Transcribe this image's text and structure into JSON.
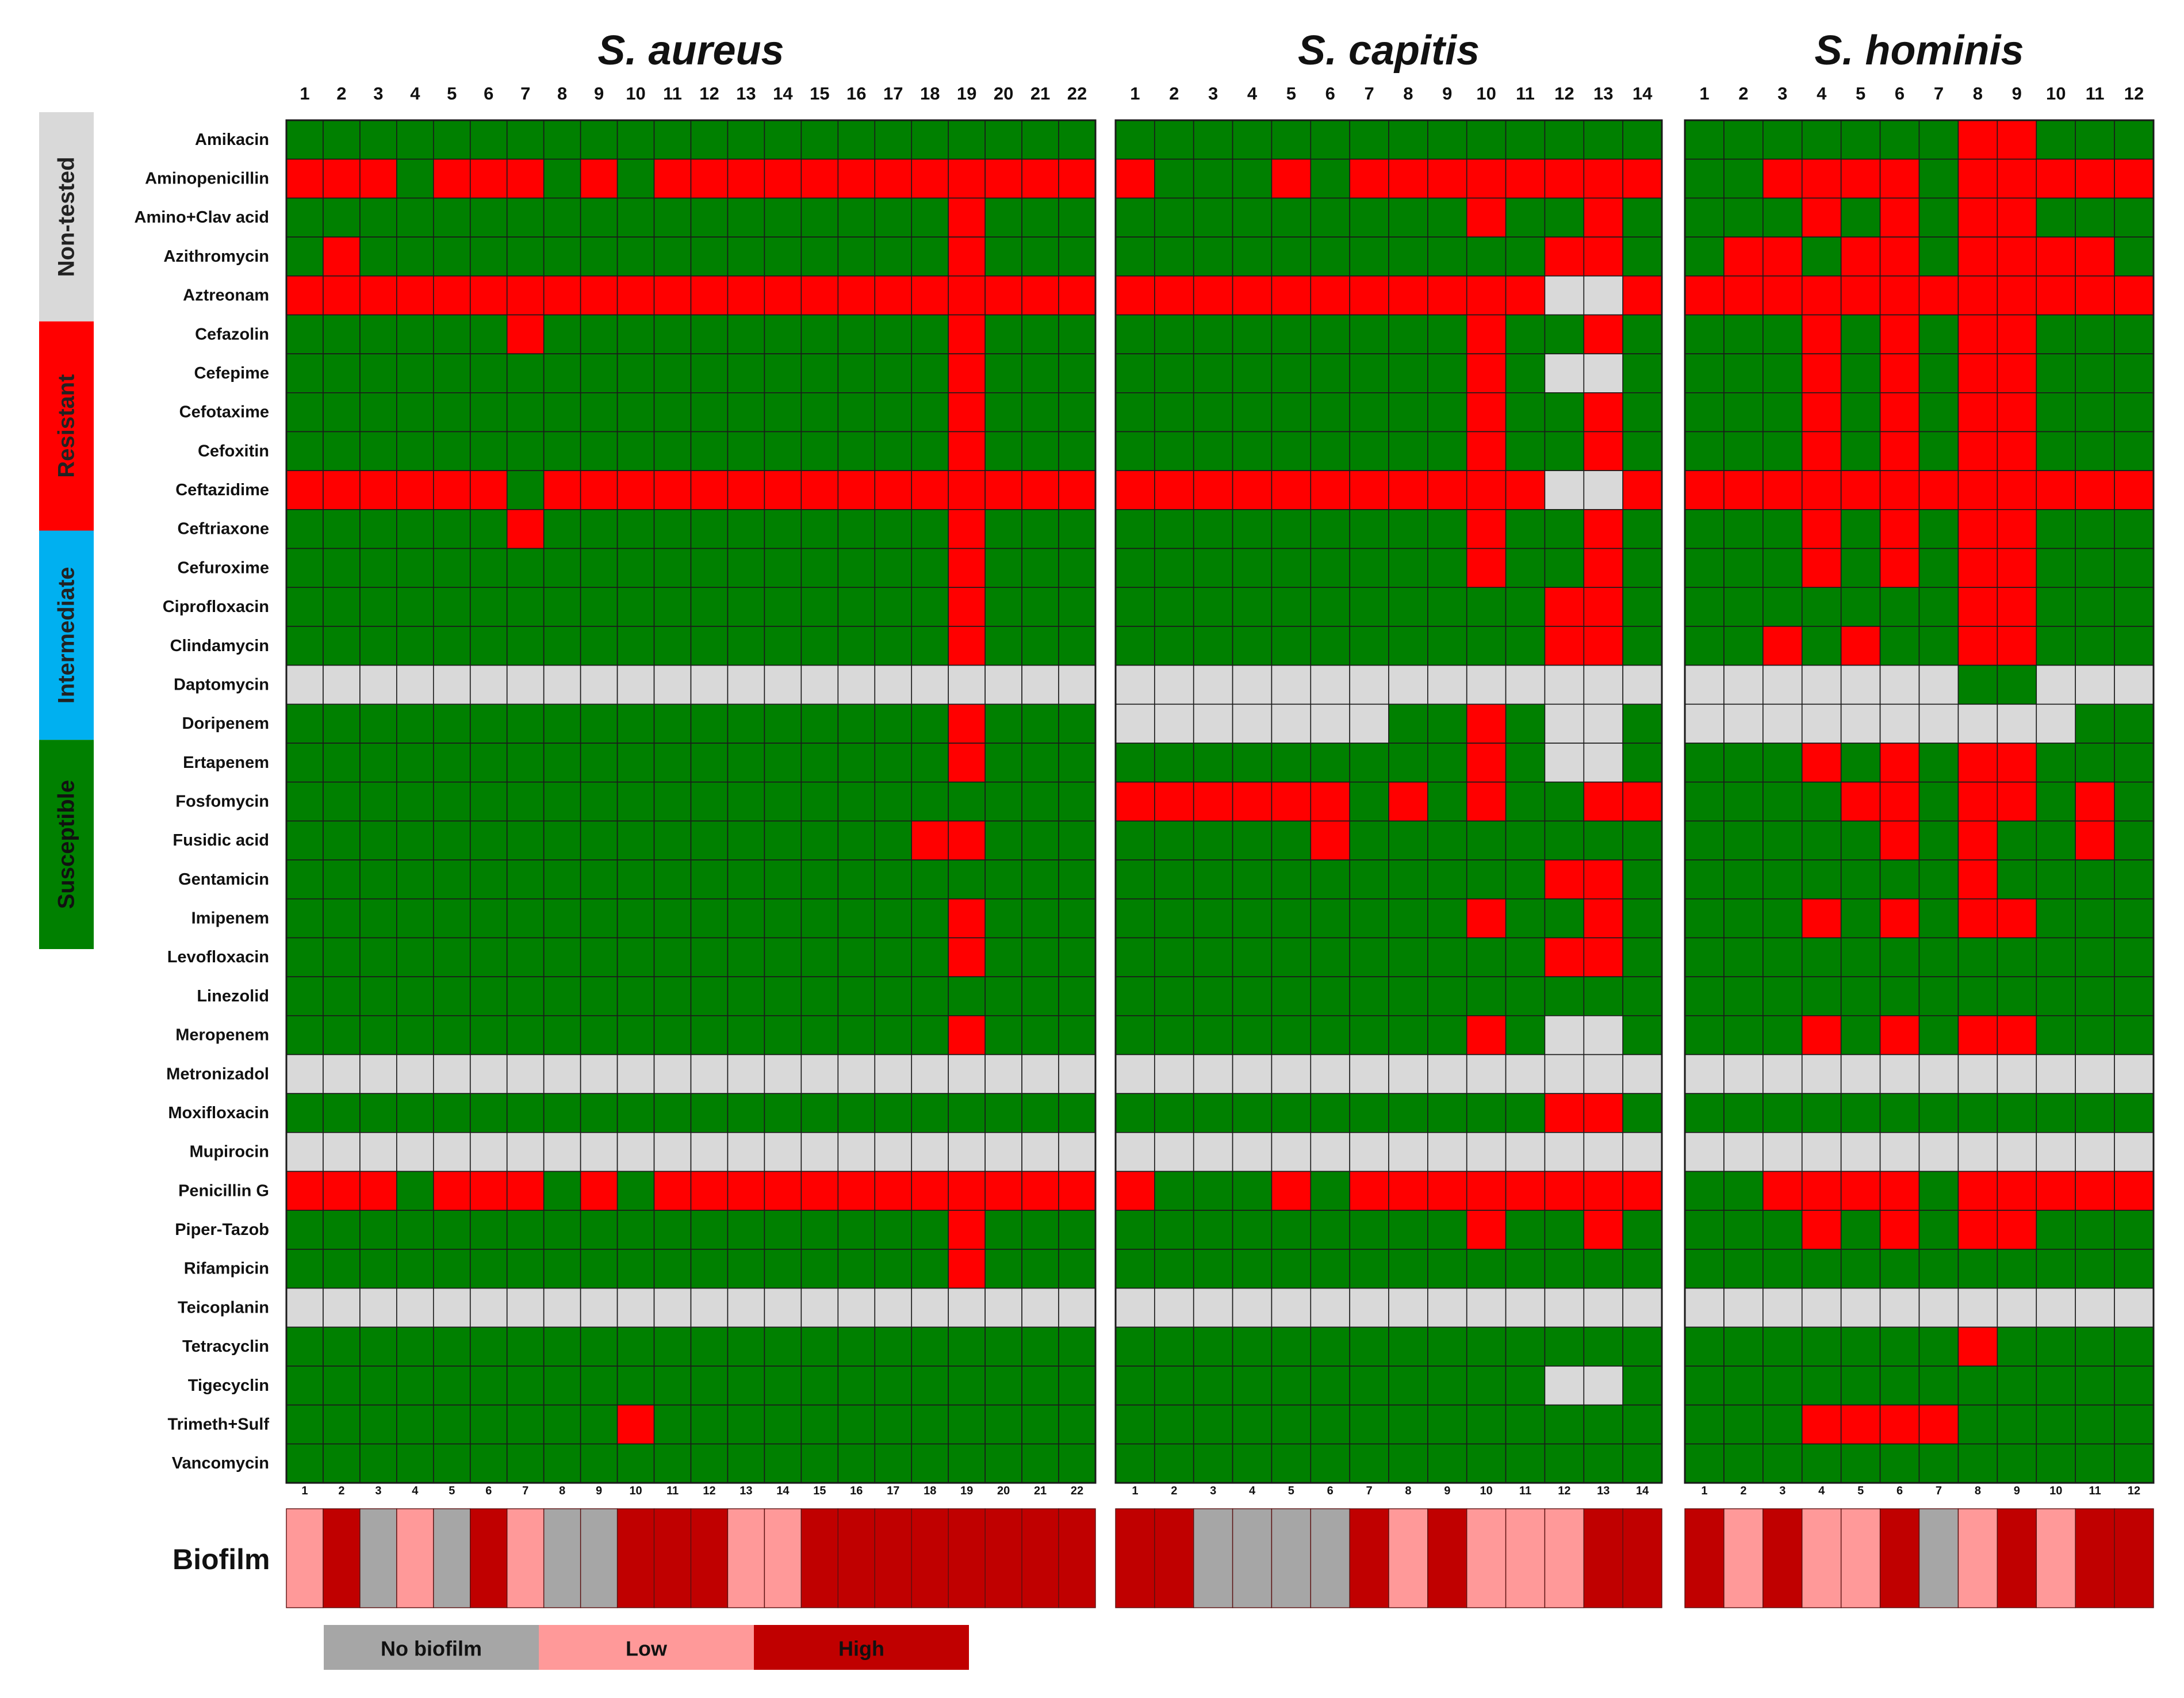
{
  "chart_data": {
    "type": "heatmap",
    "title": "",
    "antibiotics": [
      "Amikacin",
      "Aminopenicillin",
      "Amino+Clav acid",
      "Azithromycin",
      "Aztreonam",
      "Cefazolin",
      "Cefepime",
      "Cefotaxime",
      "Cefoxitin",
      "Ceftazidime",
      "Ceftriaxone",
      "Cefuroxime",
      "Ciprofloxacin",
      "Clindamycin",
      "Daptomycin",
      "Doripenem",
      "Ertapenem",
      "Fosfomycin",
      "Fusidic acid",
      "Gentamicin",
      "Imipenem",
      "Levofloxacin",
      "Linezolid",
      "Meropenem",
      "Metronizadol",
      "Moxifloxacin",
      "Mupirocin",
      "Penicillin G",
      "Piper-Tazob",
      "Rifampicin",
      "Teicoplanin",
      "Tetracyclin",
      "Tigecyclin",
      "Trimeth+Sulf",
      "Vancomycin"
    ],
    "category_legend": [
      {
        "code": "N",
        "label": "Non-tested",
        "color": "#d9d9d9"
      },
      {
        "code": "R",
        "label": "Resistant",
        "color": "#ff0000"
      },
      {
        "code": "I",
        "label": "Intermediate",
        "color": "#00b0f0"
      },
      {
        "code": "S",
        "label": "Susceptible",
        "color": "#008000"
      }
    ],
    "biofilm_label": "Biofilm",
    "biofilm_legend": [
      {
        "code": "N",
        "label": "No biofilm",
        "color": "#a6a6a6"
      },
      {
        "code": "L",
        "label": "Low",
        "color": "#ff9999"
      },
      {
        "code": "H",
        "label": "High",
        "color": "#c00000"
      }
    ],
    "panels": [
      {
        "species": "S. aureus",
        "isolates": [
          "1",
          "2",
          "3",
          "4",
          "5",
          "6",
          "7",
          "8",
          "9",
          "10",
          "11",
          "12",
          "13",
          "14",
          "15",
          "16",
          "17",
          "18",
          "19",
          "20",
          "21",
          "22"
        ],
        "matrix": [
          "SSSSSSSSSSSSSSSSSSSSSS",
          "RRRSRRRSRSRRRRRRRRRRRR",
          "SSSSSSSSSSSSSSSSSSRSSS",
          "SRSSSSSSSSSSSSSSSSRSSS",
          "RRRRRRRRRRRRRRRRRRRRRR",
          "SSSSSSRSSSSSSSSSSSRSSS",
          "SSSSSSSSSSSSSSSSSSRSSS",
          "SSSSSSSSSSSSSSSSSSRSSS",
          "SSSSSSSSSSSSSSSSSSRSSS",
          "RRRRRRSRRRRRRRRRRRRRRR",
          "SSSSSSRSSSSSSSSSSSRSSS",
          "SSSSSSSSSSSSSSSSSSRSSS",
          "SSSSSSSSSSSSSSSSSSRSSS",
          "SSSSSSSSSSSSSSSSSSRSSS",
          "NNNNNNNNNNNNNNNNNNNNNN",
          "SSSSSSSSSSSSSSSSSSRSSS",
          "SSSSSSSSSSSSSSSSSSRSSS",
          "SSSSSSSSSSSSSSSSSSSSSS",
          "SSSSSSSSSSSSSSSSSRRSSS",
          "SSSSSSSSSSSSSSSSSSSSSS",
          "SSSSSSSSSSSSSSSSSSRSSS",
          "SSSSSSSSSSSSSSSSSSRSSS",
          "SSSSSSSSSSSSSSSSSSSSSS",
          "SSSSSSSSSSSSSSSSSSRSSS",
          "NNNNNNNNNNNNNNNNNNNNNN",
          "SSSSSSSSSSSSSSSSSSSSSS",
          "NNNNNNNNNNNNNNNNNNNNNN",
          "RRRSRRRSRSRRRRRRRRRRRR",
          "SSSSSSSSSSSSSSSSSSRSSS",
          "SSSSSSSSSSSSSSSSSSRSSS",
          "NNNNNNNNNNNNNNNNNNNNNN",
          "SSSSSSSSSSSSSSSSSSSSSS",
          "SSSSSSSSSSSSSSSSSSSSSS",
          "SSSSSSSSSRSSSSSSSSSSSS",
          "SSSSSSSSSSSSSSSSSSSSSS"
        ],
        "biofilm": "LHNLNHLNNHHHLLHHHHHHHH"
      },
      {
        "species": "S. capitis",
        "isolates": [
          "1",
          "2",
          "3",
          "4",
          "5",
          "6",
          "7",
          "8",
          "9",
          "10",
          "11",
          "12",
          "13",
          "14"
        ],
        "matrix": [
          "SSSSSSSSSSSSSS",
          "RSSSRSRRRRRRRR",
          "SSSSSSSSSRSSRS",
          "SSSSSSSSSSSRRS",
          "RRRRRRRRRRRNNR",
          "SSSSSSSSSRSSRS",
          "SSSSSSSSSRSNNS",
          "SSSSSSSSSRSSRS",
          "SSSSSSSSSRSSRS",
          "RRRRRRRRRRRNNR",
          "SSSSSSSSSRSSRS",
          "SSSSSSSSSRSSRS",
          "SSSSSSSSSSSRRS",
          "SSSSSSSSSSSRRS",
          "NNNNNNNNNNNNNN",
          "NNNNNNNSSRSNNS",
          "SSSSSSSSSRSNNS",
          "RRRRRRSRSRSSRR",
          "SSSSSRSSSSSSSS",
          "SSSSSSSSSSSRRS",
          "SSSSSSSSSRSSRS",
          "SSSSSSSSSSSRRS",
          "SSSSSSSSSSSSSS",
          "SSSSSSSSSRSNNS",
          "NNNNNNNNNNNNNN",
          "SSSSSSSSSSSRRS",
          "NNNNNNNNNNNNNN",
          "RSSSRSRRRRRRRR",
          "SSSSSSSSSRSSRS",
          "SSSSSSSSSSSSSS",
          "NNNNNNNNNNNNNN",
          "SSSSSSSSSSSSSS",
          "SSSSSSSSSSSNNS",
          "SSSSSSSSSSSSSS",
          "SSSSSSSSSSSSSS"
        ],
        "biofilm": "HHNNNNHLHLLLHH"
      },
      {
        "species": "S. hominis",
        "isolates": [
          "1",
          "2",
          "3",
          "4",
          "5",
          "6",
          "7",
          "8",
          "9",
          "10",
          "11",
          "12"
        ],
        "matrix": [
          "SSSSSSSRRSSS",
          "SSRRRRSRRRRR",
          "SSSRSRSRRSSS",
          "SRRSRRSRRRRS",
          "RRRRRRRRRRRR",
          "SSSRSRSRRSSS",
          "SSSRSRSRRSSS",
          "SSSRSRSRRSSS",
          "SSSRSRSRRSSS",
          "RRRRRRRRRRRR",
          "SSSRSRSRRSSS",
          "SSSRSRSRRSSS",
          "SSSSSSSRRSSS",
          "SSRSRSSRRSSS",
          "NNNNNNNSSNNN",
          "NNNNNNNNNNSS",
          "SSSRSRSRRSSS",
          "SSSSRRSRRSRS",
          "SSSSSRSRSSRS",
          "SSSSSSSRSSSS",
          "SSSRSRSRRSSS",
          "SSSSSSSSSSSS",
          "SSSSSSSSSSSS",
          "SSSRSRSRRSSS",
          "NNNNNNNNNNNN",
          "SSSSSSSSSSSS",
          "NNNNNNNNNNNN",
          "SSRRRRSRRRRR",
          "SSSRSRSRRSSS",
          "SSSSSSSSSSSS",
          "NNNNNNNNNNNN",
          "SSSSSSSRSSSS",
          "SSSSSSSSSSSS",
          "SSSRRRRSSSSS",
          "SSSSSSSSSSSS"
        ],
        "biofilm": "HLHLLHNLHLHH"
      }
    ]
  }
}
